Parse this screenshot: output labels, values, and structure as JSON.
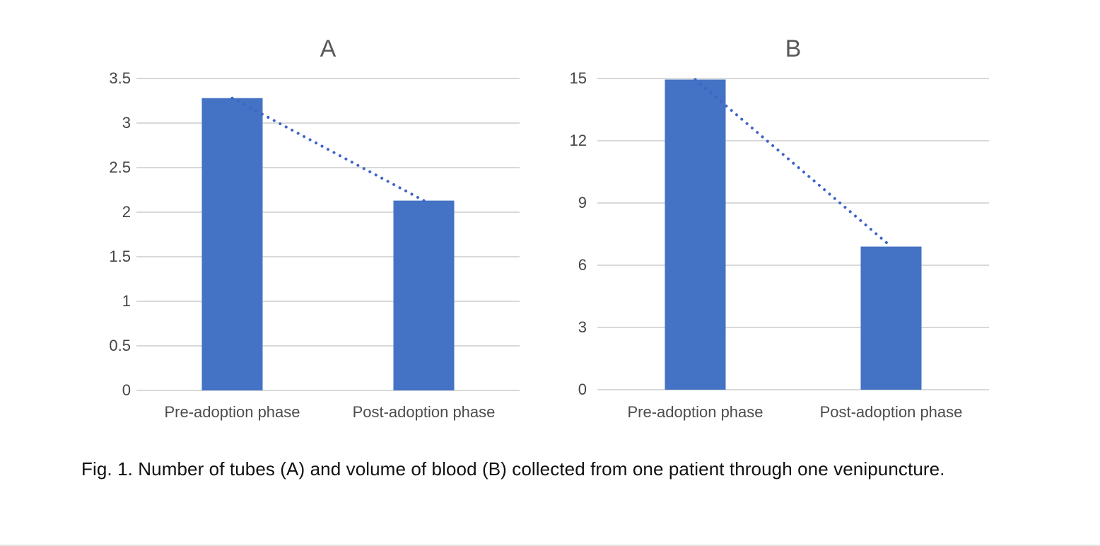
{
  "figure": {
    "caption": "Fig. 1. Number of tubes (A) and volume of blood (B) collected from one patient through one venipuncture."
  },
  "colors": {
    "bar": "#4472C4",
    "trendline": "#3E64C8",
    "gridline": "#D9D9D9",
    "axis_text": "#444444",
    "category_text": "#4d4d4d",
    "title_text": "#595959",
    "caption_text": "#111111"
  },
  "chart_data": [
    {
      "type": "bar",
      "title": "A",
      "categories": [
        "Pre-adoption phase",
        "Post-adoption phase"
      ],
      "values": [
        3.28,
        2.13
      ],
      "yticks": [
        0,
        0.5,
        1,
        1.5,
        2,
        2.5,
        3,
        3.5
      ],
      "ylim": [
        0,
        3.5
      ],
      "xlabel": "",
      "ylabel": "",
      "grid": true,
      "legend": "none",
      "trendline": {
        "style": "dotted",
        "from_value": 3.28,
        "to_value": 2.13
      }
    },
    {
      "type": "bar",
      "title": "B",
      "categories": [
        "Pre-adoption phase",
        "Post-adoption phase"
      ],
      "values": [
        14.95,
        6.9
      ],
      "yticks": [
        0,
        3,
        6,
        9,
        12,
        15
      ],
      "ylim": [
        0,
        15
      ],
      "xlabel": "",
      "ylabel": "",
      "grid": true,
      "legend": "none",
      "trendline": {
        "style": "dotted",
        "from_value": 14.95,
        "to_value": 6.9
      }
    }
  ]
}
